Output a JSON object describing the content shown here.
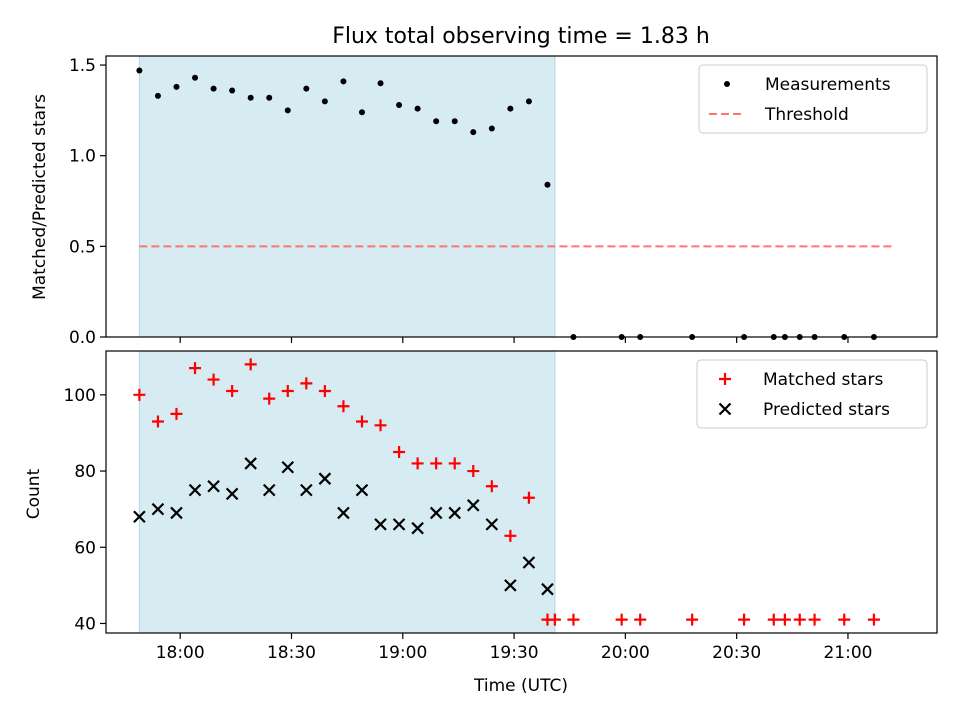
{
  "chart_data": [
    {
      "panel": "top",
      "type": "scatter",
      "title": "Flux total observing time = 1.83 h",
      "xlabel": "",
      "ylabel": "Matched/Predicted stars",
      "xlim_minutes_utc": [
        1060,
        1284
      ],
      "ylim": [
        0,
        1.55
      ],
      "yticks": [
        0.0,
        0.5,
        1.0,
        1.5
      ],
      "ytick_labels": [
        "0.0",
        "0.5",
        "1.0",
        "1.5"
      ],
      "xticks_minutes_utc": [
        1080,
        1110,
        1140,
        1170,
        1200,
        1230,
        1260
      ],
      "highlight_span_minutes_utc": [
        1069,
        1181
      ],
      "legend_position": "top-right",
      "grid": false,
      "series": [
        {
          "name": "Measurements",
          "marker": "dot",
          "color": "#000000",
          "x": [
            1069,
            1074,
            1079,
            1084,
            1089,
            1094,
            1099,
            1104,
            1109,
            1114,
            1119,
            1124,
            1129,
            1134,
            1139,
            1144,
            1149,
            1154,
            1159,
            1164,
            1169,
            1174,
            1179,
            1186,
            1199,
            1204,
            1218,
            1232,
            1240,
            1243,
            1247,
            1251,
            1259,
            1267
          ],
          "y": [
            1.47,
            1.33,
            1.38,
            1.43,
            1.37,
            1.36,
            1.32,
            1.32,
            1.25,
            1.37,
            1.3,
            1.41,
            1.24,
            1.4,
            1.28,
            1.26,
            1.19,
            1.19,
            1.13,
            1.15,
            1.26,
            1.3,
            0.84,
            0,
            0,
            0,
            0,
            0,
            0,
            0,
            0,
            0,
            0,
            0
          ]
        },
        {
          "name": "Threshold",
          "type": "dashed-line",
          "color": "#ff7373",
          "x": [
            1069,
            1272
          ],
          "y": [
            0.5,
            0.5
          ]
        }
      ]
    },
    {
      "panel": "bottom",
      "type": "scatter",
      "title": "",
      "xlabel": "Time (UTC)",
      "ylabel": "Count",
      "xlim_minutes_utc": [
        1060,
        1284
      ],
      "ylim": [
        37.5,
        111.5
      ],
      "yticks": [
        40,
        60,
        80,
        100
      ],
      "ytick_labels": [
        "40",
        "60",
        "80",
        "100"
      ],
      "xticks_minutes_utc": [
        1080,
        1110,
        1140,
        1170,
        1200,
        1230,
        1260
      ],
      "xtick_labels": [
        "18:00",
        "18:30",
        "19:00",
        "19:30",
        "20:00",
        "20:30",
        "21:00"
      ],
      "highlight_span_minutes_utc": [
        1069,
        1181
      ],
      "legend_position": "top-right",
      "grid": false,
      "series": [
        {
          "name": "Matched stars",
          "marker": "plus",
          "color": "#ff0000",
          "x": [
            1069,
            1074,
            1079,
            1084,
            1089,
            1094,
            1099,
            1104,
            1109,
            1114,
            1119,
            1124,
            1129,
            1134,
            1139,
            1144,
            1149,
            1154,
            1159,
            1164,
            1169,
            1174,
            1179,
            1181,
            1186,
            1199,
            1204,
            1218,
            1232,
            1240,
            1243,
            1247,
            1251,
            1259,
            1267
          ],
          "y": [
            100,
            93,
            95,
            107,
            104,
            101,
            108,
            99,
            101,
            103,
            101,
            97,
            93,
            92,
            85,
            82,
            82,
            82,
            80,
            76,
            63,
            73,
            41,
            41,
            41,
            41,
            41,
            41,
            41,
            41,
            41,
            41,
            41,
            41,
            41
          ]
        },
        {
          "name": "Predicted stars",
          "marker": "x",
          "color": "#000000",
          "x": [
            1069,
            1074,
            1079,
            1084,
            1089,
            1094,
            1099,
            1104,
            1109,
            1114,
            1119,
            1124,
            1129,
            1134,
            1139,
            1144,
            1149,
            1154,
            1159,
            1164,
            1169,
            1174,
            1179
          ],
          "y": [
            68,
            70,
            69,
            75,
            76,
            74,
            82,
            75,
            81,
            75,
            78,
            69,
            75,
            66,
            66,
            65,
            69,
            69,
            71,
            66,
            50,
            56,
            49
          ]
        }
      ]
    }
  ],
  "colors": {
    "span_fill": "#add8e6",
    "threshold": "#ff7373",
    "matched": "#ff0000",
    "predicted": "#000000",
    "measurement": "#000000"
  }
}
